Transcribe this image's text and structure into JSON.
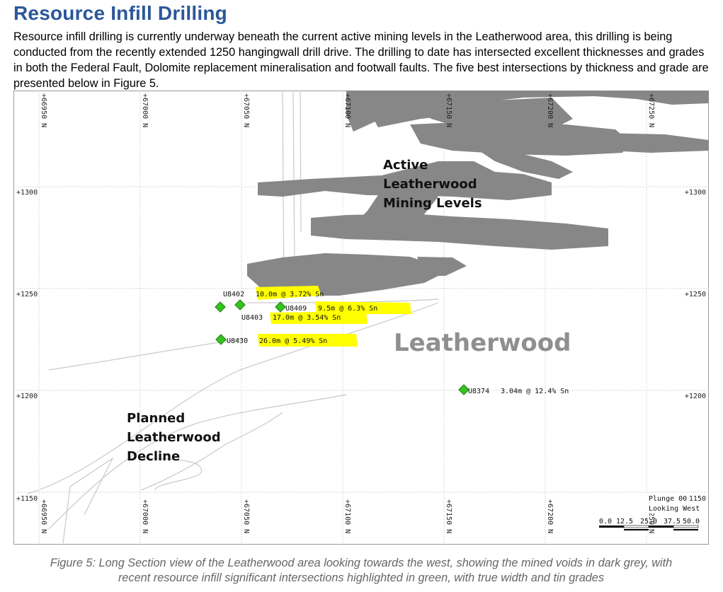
{
  "doc": {
    "title": "Resource Infill Drilling",
    "paragraph": "Resource infill drilling is currently underway beneath the current active mining levels in the Leatherwood area, this drilling is being conducted from the recently extended 1250 hangingwall drill drive. The drilling to date has intersected excellent thicknesses and grades in both the Federal Fault, Dolomite replacement mineralisation and footwall faults. The five best intersections by thickness and grade are presented below in Figure 5.",
    "caption": "Figure 5: Long Section view of the Leatherwood area looking towards the west, showing the mined voids in dark grey, with recent resource infill significant intersections highlighted in green, with true width and tin grades"
  },
  "figure": {
    "northing_labels": [
      "+66950 N",
      "+67000 N",
      "+67050 N",
      "+67100 N",
      "+67150 N",
      "+67200 N",
      "+67250 N"
    ],
    "elevation_labels": [
      "+1300",
      "+1250",
      "+1200",
      "+1150"
    ],
    "annotations": {
      "active_line1": "Active",
      "active_line2": "Leatherwood",
      "active_line3": "Mining Levels",
      "planned_line1": "Planned",
      "planned_line2": "Leatherwood",
      "planned_line3": "Decline",
      "watermark": "Leatherwood"
    },
    "intersections": [
      {
        "hole": "U8402",
        "result": "10.0m  @  3.72% Sn",
        "highlight": true
      },
      {
        "hole": "U8409",
        "result": "9.5m  @  6.3% Sn",
        "highlight": true
      },
      {
        "hole": "U8403",
        "result": "17.0m  @  3.54% Sn",
        "highlight": true
      },
      {
        "hole": "U8430",
        "result": "26.0m  @  5.49% Sn",
        "highlight": true
      },
      {
        "hole": "U8374",
        "result": "3.04m  @  12.4% Sn",
        "highlight": false
      }
    ],
    "view": {
      "plunge": "Plunge 00",
      "direction": "Looking West"
    },
    "scale_labels": [
      "0.0",
      "12.5",
      "25.0",
      "37.5",
      "50.0"
    ],
    "colors": {
      "mined_voids": "#878787",
      "intersection_marker": "#34c41e",
      "highlight": "#ffff00",
      "heading": "#2b579a"
    }
  }
}
